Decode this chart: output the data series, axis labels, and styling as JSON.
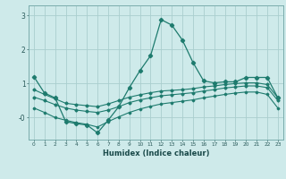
{
  "xlabel": "Humidex (Indice chaleur)",
  "bg_color": "#ceeaea",
  "grid_color": "#aacece",
  "line_color": "#1e7b6e",
  "xlim": [
    -0.5,
    23.5
  ],
  "ylim": [
    -0.65,
    3.3
  ],
  "xticks": [
    0,
    1,
    2,
    3,
    4,
    5,
    6,
    7,
    8,
    9,
    10,
    11,
    12,
    13,
    14,
    15,
    16,
    17,
    18,
    19,
    20,
    21,
    22,
    23
  ],
  "yticks": [
    0.0,
    1.0,
    2.0,
    3.0
  ],
  "ytick_labels": [
    "-0",
    "1",
    "2",
    "3"
  ],
  "line1_x": [
    0,
    1,
    2,
    3,
    4,
    5,
    6,
    7,
    8,
    9,
    10,
    11,
    12,
    13,
    14,
    15,
    16,
    17,
    18,
    19,
    20,
    21,
    22,
    23
  ],
  "line1_y": [
    1.2,
    0.72,
    0.58,
    -0.12,
    -0.18,
    -0.22,
    -0.45,
    -0.08,
    0.32,
    0.88,
    1.38,
    1.82,
    2.88,
    2.72,
    2.28,
    1.62,
    1.08,
    1.02,
    1.05,
    1.05,
    1.18,
    1.18,
    1.18,
    0.58
  ],
  "line2_x": [
    0,
    1,
    2,
    3,
    4,
    5,
    6,
    7,
    8,
    9,
    10,
    11,
    12,
    13,
    14,
    15,
    16,
    17,
    18,
    19,
    20,
    21,
    22,
    23
  ],
  "line2_y": [
    0.82,
    0.68,
    0.55,
    0.42,
    0.38,
    0.35,
    0.32,
    0.4,
    0.5,
    0.6,
    0.67,
    0.73,
    0.78,
    0.8,
    0.82,
    0.85,
    0.9,
    0.93,
    0.97,
    1.0,
    1.02,
    1.02,
    0.97,
    0.58
  ],
  "line3_x": [
    0,
    1,
    2,
    3,
    4,
    5,
    6,
    7,
    8,
    9,
    10,
    11,
    12,
    13,
    14,
    15,
    16,
    17,
    18,
    19,
    20,
    21,
    22,
    23
  ],
  "line3_y": [
    0.6,
    0.5,
    0.38,
    0.28,
    0.22,
    0.18,
    0.15,
    0.22,
    0.32,
    0.44,
    0.52,
    0.58,
    0.64,
    0.67,
    0.7,
    0.73,
    0.78,
    0.82,
    0.87,
    0.9,
    0.93,
    0.93,
    0.88,
    0.5
  ],
  "line4_x": [
    0,
    1,
    2,
    3,
    4,
    5,
    6,
    7,
    8,
    9,
    10,
    11,
    12,
    13,
    14,
    15,
    16,
    17,
    18,
    19,
    20,
    21,
    22,
    23
  ],
  "line4_y": [
    0.28,
    0.15,
    0.0,
    -0.08,
    -0.15,
    -0.2,
    -0.28,
    -0.12,
    0.02,
    0.15,
    0.25,
    0.33,
    0.4,
    0.44,
    0.48,
    0.52,
    0.58,
    0.63,
    0.68,
    0.72,
    0.75,
    0.75,
    0.68,
    0.28
  ]
}
